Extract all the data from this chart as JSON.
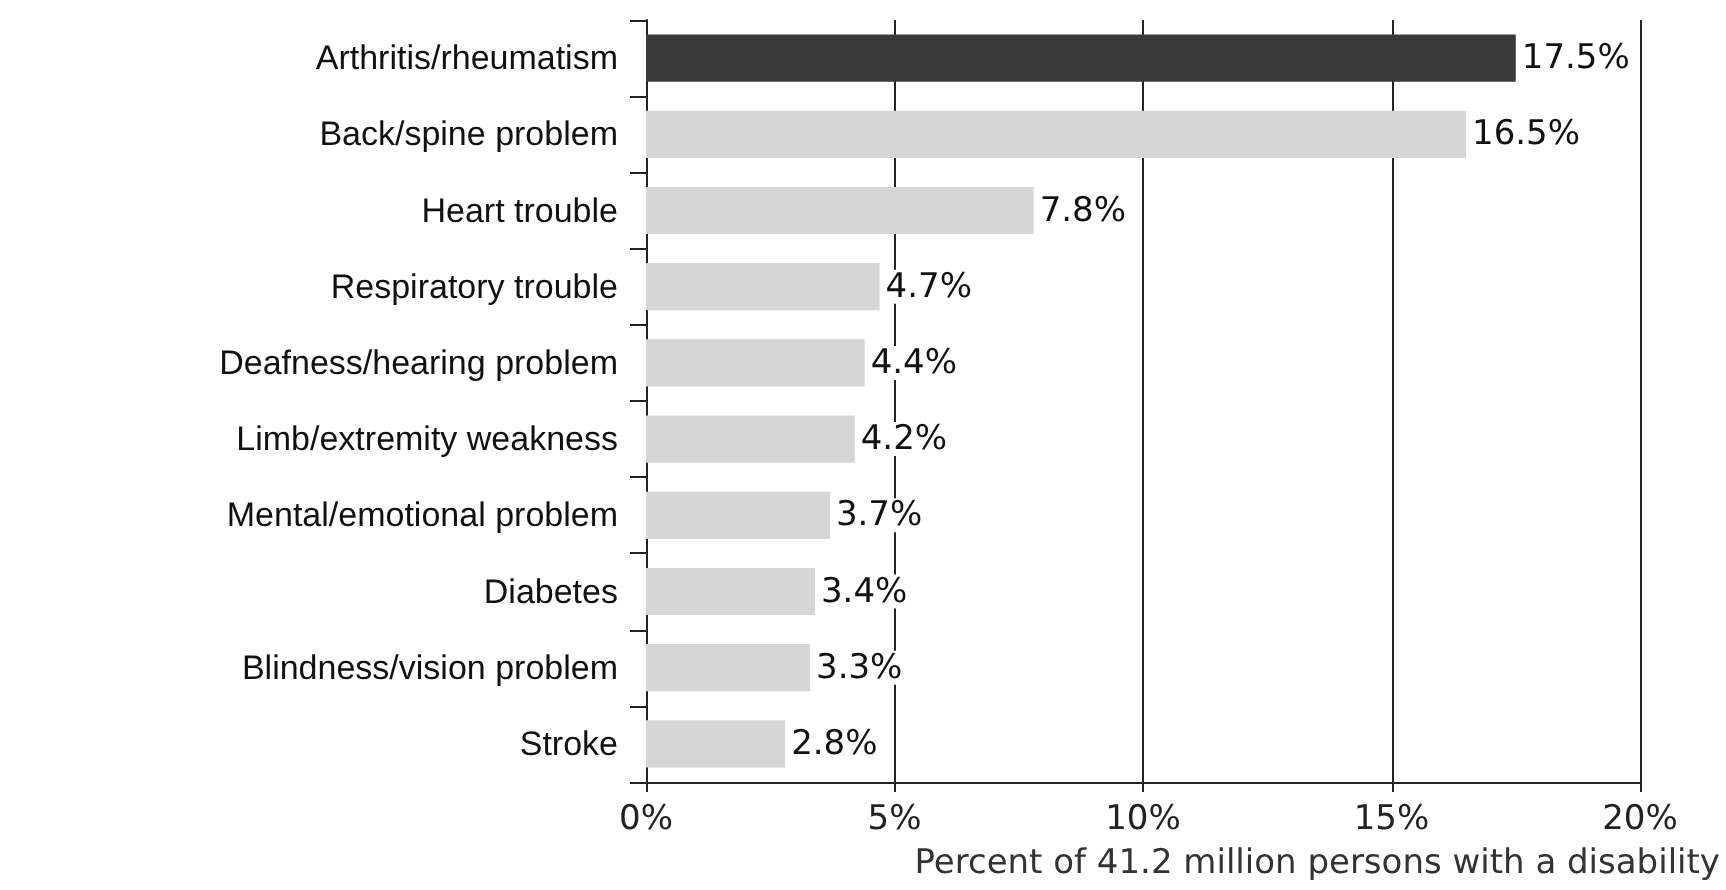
{
  "chart_data": {
    "type": "bar",
    "orientation": "horizontal",
    "categories": [
      "Arthritis/rheumatism",
      "Back/spine problem",
      "Heart trouble",
      "Respiratory trouble",
      "Deafness/hearing problem",
      "Limb/extremity weakness",
      "Mental/emotional problem",
      "Diabetes",
      "Blindness/vision problem",
      "Stroke"
    ],
    "values": [
      17.5,
      16.5,
      7.8,
      4.7,
      4.4,
      4.2,
      3.7,
      3.4,
      3.3,
      2.8
    ],
    "value_labels": [
      "17.5%",
      "16.5%",
      "7.8%",
      "4.7%",
      "4.4%",
      "4.2%",
      "3.7%",
      "3.4%",
      "3.3%",
      "2.8%"
    ],
    "colors": [
      "#3a3a3a",
      "#d6d6d6",
      "#d6d6d6",
      "#d6d6d6",
      "#d6d6d6",
      "#d6d6d6",
      "#d6d6d6",
      "#d6d6d6",
      "#d6d6d6",
      "#d6d6d6"
    ],
    "xlabel": "Percent of 41.2 million persons with a disability",
    "xlim": [
      0,
      20
    ],
    "xticks": [
      {
        "value": 0,
        "label": "0%"
      },
      {
        "value": 5,
        "label": "5%"
      },
      {
        "value": 10,
        "label": "10%"
      },
      {
        "value": 15,
        "label": "15%"
      },
      {
        "value": 20,
        "label": "20%"
      }
    ],
    "grid": "x"
  }
}
